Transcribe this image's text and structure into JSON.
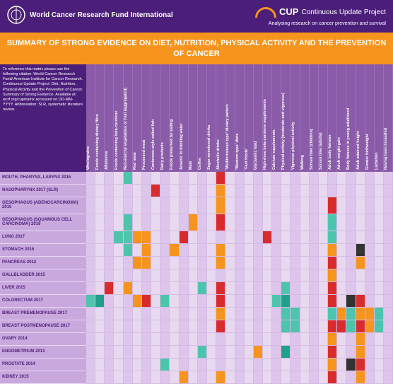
{
  "header": {
    "wcrf": "World\nCancer\nResearch\nFund International",
    "cup_label": "CUP",
    "cup_full": "Continuous\nUpdate\nProject",
    "cup_sub": "Analysing research on cancer\nprevention and survival"
  },
  "title": "SUMMARY OF STRONG EVIDENCE ON DIET, NUTRITION,\nPHYSICAL ACTIVITY AND THE PREVENTION OF CANCER",
  "citation": "To reference this matrix please use the following citation:\nWorld Cancer Research Fund/ American Institute for Cancer Research. Continuous Update Project: Diet, Nutrition, Physical Activity and the Prevention of Cancer. Summary of Strong Evidence. Available at: wcrf.org/cupmatrix accessed on DD-MM-YYYY.\n\nAbbreviation: SLR, systematic literature review.",
  "colors": {
    "increases": "#d82c2c",
    "decreases": "#1fa08a",
    "probable_inc": "#f7941e",
    "probable_dec": "#4fc4ad",
    "footnote": "#333333"
  },
  "columns": [
    "Wholegrains",
    "Foods containing dietary fibre",
    "Aflatoxins",
    "Foods containing beta-carotene",
    "Non-starchy vegetables or fruit (aggregated)",
    "Red meat",
    "Processed meat",
    "Cantonese-style salted fish",
    "Dairy products",
    "Foods preserved by salting",
    "Arsenic in drinking water",
    "Mate",
    "Coffee",
    "Sugar sweetened drinks",
    "Alcoholic drinks",
    "'Mediterranean type' dietary pattern",
    "'Western type' diets",
    "'Fast foods'",
    "Glycaemic load",
    "High-dose beta-carotene supplements",
    "Calcium supplements",
    "Physical activity (moderate and vigorous)",
    "Vigorous physical activity",
    "Walking",
    "Screen time (children)",
    "Screen time (adults)",
    "Adult body fatness",
    "Adult weight gain",
    "Body fatness in young adulthood",
    "Adult attained height",
    "Greater birthweight",
    "Lactation",
    "Having been breastfed"
  ],
  "rows": [
    {
      "label": "MOUTH, PHARYNX, LARYNX 2016",
      "tall": false
    },
    {
      "label": "NASOPHARYNX 2017 (SLR)",
      "tall": false
    },
    {
      "label": "OESOPHAGUS (ADENOCARCINOMA) 2016",
      "tall": true
    },
    {
      "label": "OESOPHAGUS (SQUAMOUS CELL CARCINOMA) 2016",
      "tall": true
    },
    {
      "label": "LUNG 2017",
      "tall": false
    },
    {
      "label": "STOMACH 2016",
      "tall": false
    },
    {
      "label": "PANCREAS 2012",
      "tall": false
    },
    {
      "label": "GALLBLADDER 2015",
      "tall": false
    },
    {
      "label": "LIVER 2015",
      "tall": false
    },
    {
      "label": "COLORECTUM 2017",
      "tall": false
    },
    {
      "label": "BREAST PREMENOPAUSE 2017",
      "tall": false
    },
    {
      "label": "BREAST POSTMENOPAUSE 2017",
      "tall": false
    },
    {
      "label": "OVARY 2014",
      "tall": false
    },
    {
      "label": "ENDOMETRIUM 2013",
      "tall": false
    },
    {
      "label": "PROSTATE 2014",
      "tall": false
    },
    {
      "label": "KIDNEY 2015",
      "tall": false
    }
  ],
  "cells": {
    "0": {
      "4": "probable_dec",
      "14": "increases"
    },
    "1": {
      "7": "increases",
      "14": "probable_inc"
    },
    "2": {
      "14": "probable_inc",
      "26": "increases"
    },
    "3": {
      "4": "probable_dec",
      "11": "probable_inc",
      "14": "increases",
      "26": "probable_dec"
    },
    "4": {
      "3": "probable_dec",
      "4": "probable_dec",
      "5": "probable_inc",
      "6": "probable_inc",
      "10": "increases",
      "19": "increases",
      "26": "probable_dec"
    },
    "5": {
      "4": "probable_dec",
      "6": "probable_inc",
      "9": "probable_inc",
      "14": "probable_inc",
      "26": "probable_inc",
      "29": "footnote"
    },
    "6": {
      "5": "probable_inc",
      "6": "probable_inc",
      "14": "probable_inc",
      "26": "increases",
      "29": "probable_inc"
    },
    "7": {
      "26": "probable_inc"
    },
    "8": {
      "2": "increases",
      "4": "probable_inc",
      "12": "probable_dec",
      "14": "increases",
      "21": "probable_dec",
      "26": "increases"
    },
    "9": {
      "0": "probable_dec",
      "1": "decreases",
      "5": "probable_inc",
      "6": "increases",
      "8": "probable_dec",
      "14": "increases",
      "20": "probable_dec",
      "21": "decreases",
      "26": "increases",
      "28": "footnote",
      "29": "increases"
    },
    "10": {
      "14": "probable_inc",
      "21": "probable_dec",
      "22": "probable_dec",
      "26": "probable_dec",
      "27": "probable_inc",
      "28": "probable_dec",
      "29": "probable_inc",
      "30": "probable_inc",
      "31": "probable_dec"
    },
    "11": {
      "14": "increases",
      "21": "probable_dec",
      "22": "probable_dec",
      "26": "increases",
      "27": "increases",
      "28": "probable_dec",
      "29": "increases",
      "30": "probable_inc",
      "31": "probable_dec"
    },
    "12": {
      "26": "probable_inc",
      "29": "probable_inc"
    },
    "13": {
      "12": "probable_dec",
      "18": "probable_inc",
      "21": "decreases",
      "26": "increases",
      "29": "probable_inc"
    },
    "14": {
      "8": "probable_dec",
      "26": "probable_inc",
      "28": "footnote",
      "29": "increases"
    },
    "15": {
      "10": "probable_inc",
      "14": "probable_inc",
      "26": "increases",
      "29": "probable_inc"
    }
  },
  "alt_cols": [
    0,
    2,
    4,
    6,
    8,
    10,
    12,
    14,
    16,
    18,
    20,
    22,
    24,
    26,
    28,
    30,
    32
  ]
}
